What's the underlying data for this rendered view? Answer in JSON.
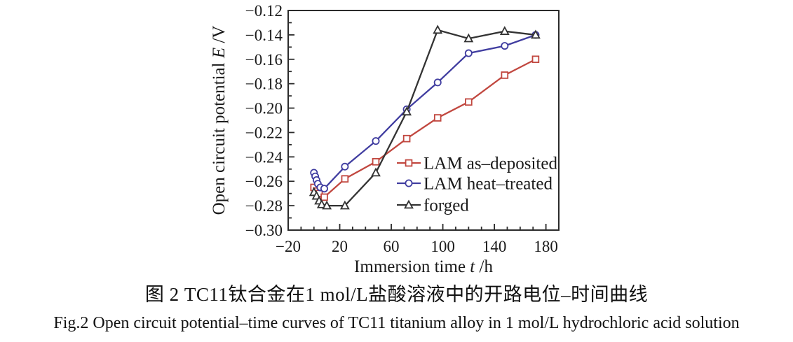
{
  "figure": {
    "caption_cn": "图 2  TC11钛合金在1 mol/L盐酸溶液中的开路电位–时间曲线",
    "caption_en": "Fig.2  Open circuit potential–time curves of TC11 titanium alloy in 1 mol/L hydrochloric acid solution"
  },
  "chart_data": {
    "type": "line",
    "title": "",
    "xlabel": {
      "prefix": "Immersion time ",
      "var": "t",
      "suffix": " /h"
    },
    "ylabel": {
      "prefix": "Open circuit potential ",
      "var": "E",
      "suffix": " /V"
    },
    "xlim": [
      -20,
      190
    ],
    "ylim": [
      -0.3,
      -0.12
    ],
    "xticks": [
      -20,
      20,
      60,
      100,
      140,
      180
    ],
    "xtick_labels": [
      "−20",
      "20",
      "60",
      "100",
      "140",
      "180"
    ],
    "xminor_step": 10,
    "yticks": [
      -0.3,
      -0.28,
      -0.26,
      -0.24,
      -0.22,
      -0.2,
      -0.18,
      -0.16,
      -0.14,
      -0.12
    ],
    "ytick_labels": [
      "−0.30",
      "−0.28",
      "−0.26",
      "−0.24",
      "−0.22",
      "−0.20",
      "−0.18",
      "−0.16",
      "−0.14",
      "−0.12"
    ],
    "yminor_step": 0.01,
    "grid": false,
    "legend_position": "inside-right-middle",
    "axis_color": "#2b2b2b",
    "series": [
      {
        "name": "LAM as–deposited",
        "marker": "square",
        "color": "#c1473f",
        "points": [
          [
            0,
            -0.265
          ],
          [
            2,
            -0.268
          ],
          [
            4,
            -0.27
          ],
          [
            8,
            -0.273
          ],
          [
            24,
            -0.258
          ],
          [
            48,
            -0.244
          ],
          [
            72,
            -0.225
          ],
          [
            96,
            -0.208
          ],
          [
            120,
            -0.195
          ],
          [
            148,
            -0.173
          ],
          [
            172,
            -0.16
          ]
        ]
      },
      {
        "name": "LAM heat–treated",
        "marker": "circle",
        "color": "#403da0",
        "points": [
          [
            0,
            -0.253
          ],
          [
            1,
            -0.256
          ],
          [
            2,
            -0.259
          ],
          [
            3,
            -0.262
          ],
          [
            5,
            -0.265
          ],
          [
            8,
            -0.266
          ],
          [
            24,
            -0.248
          ],
          [
            48,
            -0.227
          ],
          [
            72,
            -0.201
          ],
          [
            96,
            -0.179
          ],
          [
            120,
            -0.155
          ],
          [
            148,
            -0.149
          ],
          [
            172,
            -0.14
          ]
        ]
      },
      {
        "name": "forged",
        "marker": "triangle",
        "color": "#333333",
        "points": [
          [
            0,
            -0.269
          ],
          [
            2,
            -0.272
          ],
          [
            4,
            -0.276
          ],
          [
            6,
            -0.279
          ],
          [
            10,
            -0.28
          ],
          [
            24,
            -0.28
          ],
          [
            48,
            -0.253
          ],
          [
            72,
            -0.203
          ],
          [
            96,
            -0.136
          ],
          [
            120,
            -0.143
          ],
          [
            148,
            -0.137
          ],
          [
            172,
            -0.14
          ]
        ]
      }
    ]
  }
}
